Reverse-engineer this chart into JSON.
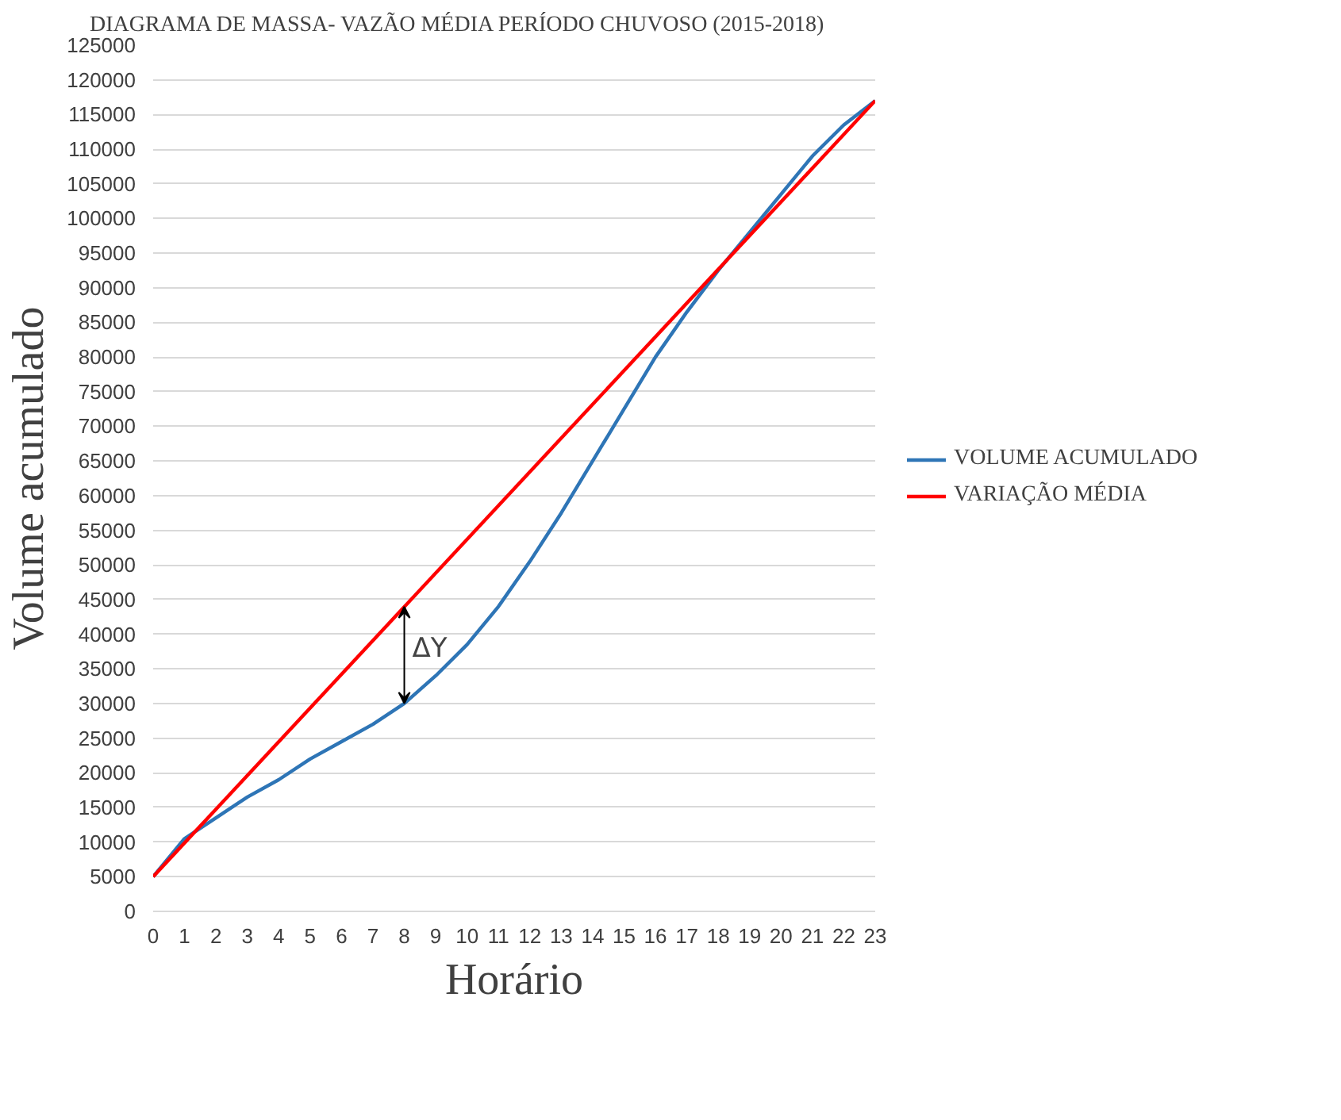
{
  "chart_data": {
    "type": "line",
    "title": "DIAGRAMA DE MASSA- VAZÃO MÉDIA PERÍODO CHUVOSO (2015-2018)",
    "xlabel": "Horário",
    "ylabel": "Volume acumulado",
    "x": [
      0,
      1,
      2,
      3,
      4,
      5,
      6,
      7,
      8,
      9,
      10,
      11,
      12,
      13,
      14,
      15,
      16,
      17,
      18,
      19,
      20,
      21,
      22,
      23
    ],
    "series": [
      {
        "name": "VOLUME ACUMULADO",
        "color": "#2e75b6",
        "values": [
          5000,
          10500,
          13500,
          16500,
          19000,
          22000,
          24500,
          27000,
          30000,
          34000,
          38500,
          44000,
          50500,
          57500,
          65000,
          72500,
          80000,
          86500,
          92500,
          98000,
          103500,
          109000,
          113500,
          117000
        ]
      },
      {
        "name": "VARIAÇÃO MÉDIA",
        "color": "#ff0000",
        "x": [
          0,
          23
        ],
        "values": [
          5000,
          117000
        ]
      }
    ],
    "annotations": [
      {
        "text": "ΔY",
        "x": 8,
        "y": 30000
      }
    ],
    "xlim": [
      0,
      23
    ],
    "xticks": [
      0,
      1,
      2,
      3,
      4,
      5,
      6,
      7,
      8,
      9,
      10,
      11,
      12,
      13,
      14,
      15,
      16,
      17,
      18,
      19,
      20,
      21,
      22,
      23
    ],
    "ylim": [
      0,
      125000
    ],
    "yticks": [
      0,
      5000,
      10000,
      15000,
      20000,
      25000,
      30000,
      35000,
      40000,
      45000,
      50000,
      55000,
      60000,
      65000,
      70000,
      75000,
      80000,
      85000,
      90000,
      95000,
      100000,
      105000,
      110000,
      115000,
      120000,
      125000
    ],
    "grid": "y",
    "legend": "right",
    "marker": "none",
    "line_style": "solid"
  }
}
